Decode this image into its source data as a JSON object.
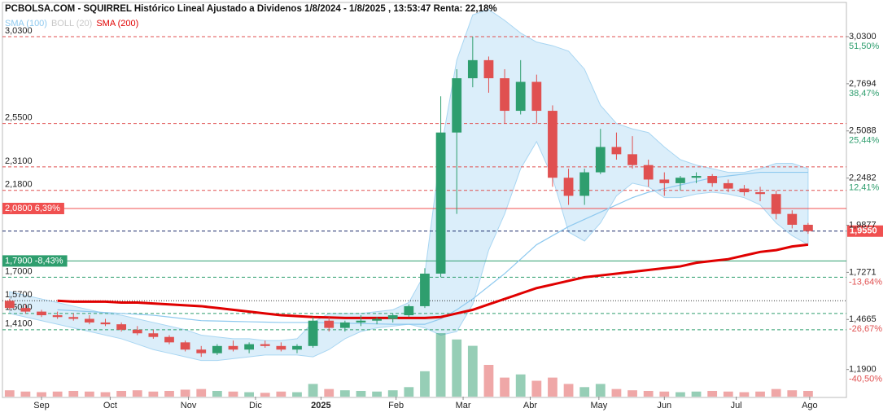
{
  "chart_data": {
    "type": "candlestick",
    "title": "PCBOLSA.COM - SQUIRREL Histórico Lineal Ajustado a Dividenos 1/8/2024 - 1/8/2025 , 13:53:47 Renta: 22,18%",
    "x": [
      0,
      1,
      2,
      3,
      4,
      5,
      6,
      7,
      8,
      9,
      10,
      11,
      12,
      13,
      14,
      15,
      16,
      17,
      18,
      19,
      20,
      21,
      22,
      23,
      24,
      25,
      26,
      27,
      28,
      29,
      30,
      31,
      32,
      33,
      34,
      35,
      36,
      37,
      38,
      39,
      40,
      41,
      42,
      43,
      44,
      45,
      46,
      47,
      48,
      49,
      50
    ],
    "open": [
      1.57,
      1.53,
      1.51,
      1.49,
      1.48,
      1.47,
      1.45,
      1.44,
      1.41,
      1.39,
      1.37,
      1.34,
      1.3,
      1.28,
      1.32,
      1.3,
      1.33,
      1.32,
      1.3,
      1.32,
      1.46,
      1.42,
      1.45,
      1.46,
      1.47,
      1.49,
      1.54,
      1.72,
      2.5,
      2.8,
      2.9,
      2.8,
      2.62,
      2.78,
      2.62,
      2.25,
      2.15,
      2.28,
      2.42,
      2.38,
      2.32,
      2.24,
      2.22,
      2.25,
      2.26,
      2.22,
      2.19,
      2.17,
      2.16,
      2.05,
      1.99
    ],
    "high": [
      1.58,
      1.55,
      1.52,
      1.51,
      1.5,
      1.49,
      1.47,
      1.45,
      1.43,
      1.41,
      1.38,
      1.35,
      1.32,
      1.33,
      1.35,
      1.34,
      1.35,
      1.34,
      1.33,
      1.48,
      1.48,
      1.46,
      1.49,
      1.48,
      1.5,
      1.55,
      1.75,
      2.7,
      2.85,
      3.03,
      2.92,
      2.85,
      2.9,
      2.82,
      2.65,
      2.3,
      2.3,
      2.52,
      2.5,
      2.48,
      2.35,
      2.28,
      2.26,
      2.28,
      2.27,
      2.24,
      2.21,
      2.2,
      2.18,
      2.07,
      2.0
    ],
    "low": [
      1.52,
      1.5,
      1.48,
      1.47,
      1.46,
      1.44,
      1.43,
      1.4,
      1.38,
      1.36,
      1.33,
      1.29,
      1.26,
      1.27,
      1.29,
      1.28,
      1.31,
      1.29,
      1.28,
      1.31,
      1.4,
      1.4,
      1.43,
      1.44,
      1.45,
      1.48,
      1.53,
      1.7,
      2.05,
      2.75,
      2.72,
      2.55,
      2.6,
      2.55,
      2.2,
      2.1,
      2.1,
      2.27,
      2.35,
      2.3,
      2.2,
      2.15,
      2.18,
      2.22,
      2.2,
      2.17,
      2.15,
      2.12,
      2.02,
      1.97,
      1.94
    ],
    "close": [
      1.53,
      1.51,
      1.49,
      1.48,
      1.47,
      1.45,
      1.44,
      1.41,
      1.39,
      1.37,
      1.34,
      1.3,
      1.28,
      1.32,
      1.3,
      1.33,
      1.32,
      1.3,
      1.32,
      1.46,
      1.42,
      1.45,
      1.46,
      1.47,
      1.49,
      1.54,
      1.72,
      2.5,
      2.8,
      2.9,
      2.8,
      2.62,
      2.78,
      2.62,
      2.25,
      2.15,
      2.28,
      2.42,
      2.38,
      2.32,
      2.24,
      2.22,
      2.25,
      2.26,
      2.22,
      2.19,
      2.17,
      2.16,
      2.05,
      1.99,
      1.955
    ],
    "volume": [
      10,
      8,
      7,
      8,
      9,
      8,
      7,
      9,
      10,
      8,
      9,
      11,
      12,
      9,
      8,
      7,
      6,
      8,
      7,
      20,
      12,
      10,
      9,
      8,
      10,
      15,
      40,
      100,
      90,
      80,
      50,
      30,
      35,
      25,
      30,
      20,
      15,
      20,
      12,
      10,
      9,
      8,
      7,
      8,
      9,
      8,
      7,
      8,
      12,
      10,
      9
    ],
    "up_color": "#2e9e6e",
    "down_color": "#e05050",
    "series": [
      {
        "name": "SMA (100)",
        "color": "#8ec9ef",
        "values": [
          null,
          null,
          null,
          1.52,
          1.515,
          1.51,
          1.505,
          1.5,
          1.495,
          1.49,
          1.48,
          1.47,
          1.46,
          1.458,
          1.456,
          1.454,
          1.452,
          1.45,
          1.45,
          1.45,
          1.448,
          1.446,
          1.444,
          1.442,
          1.44,
          1.44,
          1.44,
          1.47,
          1.52,
          1.58,
          1.65,
          1.72,
          1.8,
          1.88,
          1.93,
          1.98,
          2.02,
          2.06,
          2.1,
          2.14,
          2.17,
          2.19,
          2.21,
          2.23,
          2.25,
          2.26,
          2.27,
          2.28,
          2.28,
          2.28,
          2.28
        ]
      },
      {
        "name": "BOLL (20)",
        "color": "#cfe8f8",
        "upper": [
          1.62,
          1.6,
          1.58,
          1.56,
          1.54,
          1.52,
          1.5,
          1.49,
          1.47,
          1.45,
          1.43,
          1.41,
          1.38,
          1.37,
          1.36,
          1.36,
          1.35,
          1.35,
          1.36,
          1.45,
          1.5,
          1.5,
          1.5,
          1.51,
          1.52,
          1.56,
          1.72,
          2.4,
          2.9,
          3.15,
          3.18,
          3.12,
          3.05,
          3.0,
          2.98,
          2.95,
          2.85,
          2.65,
          2.55,
          2.52,
          2.5,
          2.42,
          2.35,
          2.32,
          2.3,
          2.28,
          2.28,
          2.3,
          2.33,
          2.33,
          2.3
        ],
        "lower": [
          1.5,
          1.48,
          1.46,
          1.44,
          1.42,
          1.4,
          1.38,
          1.36,
          1.33,
          1.3,
          1.28,
          1.26,
          1.24,
          1.24,
          1.25,
          1.26,
          1.27,
          1.27,
          1.27,
          1.26,
          1.3,
          1.36,
          1.4,
          1.42,
          1.43,
          1.44,
          1.42,
          1.38,
          1.4,
          1.55,
          1.85,
          2.05,
          2.3,
          2.45,
          2.25,
          1.95,
          1.9,
          2.0,
          2.15,
          2.22,
          2.2,
          2.14,
          2.14,
          2.16,
          2.17,
          2.16,
          2.14,
          2.1,
          2.0,
          1.93,
          1.88
        ]
      },
      {
        "name": "SMA (200)",
        "color": "#e00000",
        "values": [
          null,
          null,
          null,
          1.57,
          1.565,
          1.565,
          1.565,
          1.56,
          1.56,
          1.555,
          1.55,
          1.545,
          1.54,
          1.53,
          1.52,
          1.51,
          1.5,
          1.49,
          1.485,
          1.48,
          1.478,
          1.475,
          1.475,
          1.475,
          1.475,
          1.475,
          1.475,
          1.48,
          1.5,
          1.52,
          1.55,
          1.58,
          1.61,
          1.64,
          1.66,
          1.68,
          1.7,
          1.71,
          1.72,
          1.73,
          1.74,
          1.75,
          1.76,
          1.78,
          1.79,
          1.8,
          1.82,
          1.84,
          1.85,
          1.87,
          1.88
        ]
      }
    ],
    "xlim": [
      -0.6,
      52.4
    ],
    "xticks": [
      {
        "value": 2,
        "label": "Sep"
      },
      {
        "value": 6.3,
        "label": "Oct"
      },
      {
        "value": 11.2,
        "label": "Nov"
      },
      {
        "value": 15.4,
        "label": "Dic"
      },
      {
        "value": 19.5,
        "label": "2025"
      },
      {
        "value": 24.2,
        "label": "Feb"
      },
      {
        "value": 28.4,
        "label": "Mar"
      },
      {
        "value": 32.6,
        "label": "Abr"
      },
      {
        "value": 36.9,
        "label": "May"
      },
      {
        "value": 41,
        "label": "Jun"
      },
      {
        "value": 45.5,
        "label": "Jul"
      },
      {
        "value": 50.1,
        "label": "Ago"
      }
    ],
    "ylim": [
      1.04,
      3.21
    ],
    "yticks": [
      {
        "value": 3.03,
        "label": "3,0300"
      },
      {
        "value": 2.7694,
        "label": "2,7694"
      },
      {
        "value": 2.5088,
        "label": "2,5088"
      },
      {
        "value": 2.2482,
        "label": "2,2482"
      },
      {
        "value": 1.9877,
        "label": "1,9877"
      },
      {
        "value": 1.7271,
        "label": "1,7271"
      },
      {
        "value": 1.4665,
        "label": "1,4665"
      },
      {
        "value": 1.19,
        "label": "1,1900"
      }
    ],
    "ytick_changes": [
      "51,50%",
      "38,47%",
      "25,44%",
      "12,41%",
      null,
      "-13,64%",
      "-26,67%",
      "-40,50%"
    ],
    "levels": [
      {
        "value": 3.03,
        "label": "3,0300",
        "color": "#e05050",
        "style": "dashed"
      },
      {
        "value": 2.55,
        "label": "2,5500",
        "color": "#e05050",
        "style": "dashed"
      },
      {
        "value": 2.31,
        "label": "2,3100",
        "color": "#e05050",
        "style": "dashed"
      },
      {
        "value": 2.18,
        "label": "2,1800",
        "color": "#e05050",
        "style": "dashed"
      },
      {
        "value": 2.08,
        "label": "2,0800  6,39%",
        "color": "#f05050",
        "style": "box"
      },
      {
        "value": 1.79,
        "label": "1,7900 -8,43%",
        "color": "#2e9e6e",
        "style": "box"
      },
      {
        "value": 1.7,
        "label": "1,7000",
        "color": "#2e9e6e",
        "style": "dashed"
      },
      {
        "value": 1.57,
        "label": "1,5700",
        "color": "#333333",
        "style": "dotted"
      },
      {
        "value": 1.5,
        "label": "1,5000",
        "color": "#2e9e6e",
        "style": "dashed"
      },
      {
        "value": 1.41,
        "label": "1,4100",
        "color": "#2e9e6e",
        "style": "dashed"
      }
    ],
    "last": {
      "value": 1.955,
      "label": "1,9550",
      "color": "#f05050",
      "line_color": "#1a2a6a"
    }
  }
}
